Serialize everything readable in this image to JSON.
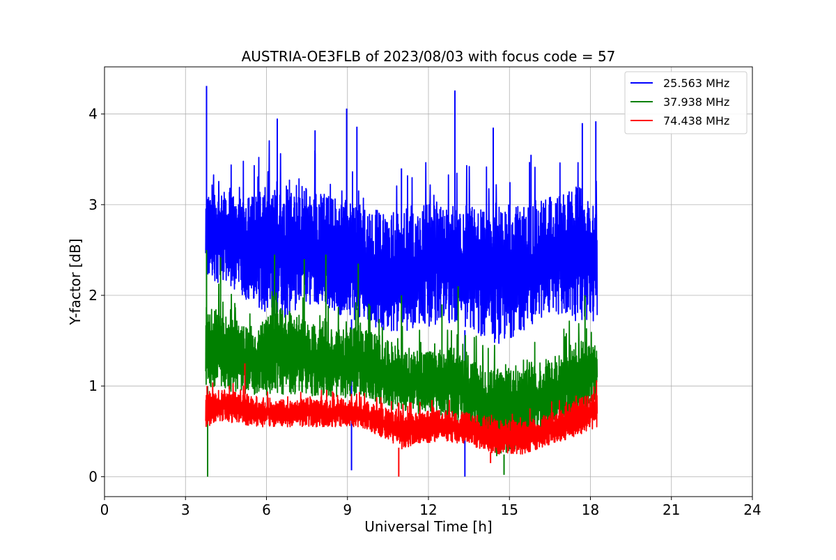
{
  "chart_data": {
    "type": "line",
    "title": "AUSTRIA-OE3FLB of 2023/08/03 with focus code = 57",
    "xlabel": "Universal Time [h]",
    "ylabel": "Y-factor [dB]",
    "xlim": [
      0,
      24
    ],
    "ylim": [
      -0.22,
      4.52
    ],
    "x_ticks": [
      0,
      3,
      6,
      9,
      12,
      15,
      18,
      21,
      24
    ],
    "x_tick_labels": [
      "0",
      "3",
      "6",
      "9",
      "12",
      "15",
      "18",
      "21",
      "24"
    ],
    "y_ticks": [
      0,
      1,
      2,
      3,
      4
    ],
    "y_tick_labels": [
      "0",
      "1",
      "2",
      "3",
      "4"
    ],
    "grid": true,
    "legend_position": "top-right",
    "series": [
      {
        "name": "25.563 MHz",
        "color": "#0000ff",
        "x_range": [
          3.75,
          18.25
        ],
        "envelope_x": [
          3.75,
          4.5,
          5.5,
          6.5,
          7.5,
          8.5,
          9.5,
          10.5,
          11.5,
          12.5,
          13.5,
          14.5,
          15.5,
          16.5,
          17.5,
          18.25
        ],
        "low": [
          2.2,
          2.1,
          1.9,
          1.7,
          1.9,
          1.8,
          1.7,
          1.6,
          1.6,
          1.7,
          1.6,
          1.45,
          1.6,
          1.8,
          1.7,
          1.7
        ],
        "high": [
          3.1,
          3.2,
          3.1,
          3.3,
          3.2,
          3.1,
          3.0,
          2.9,
          3.0,
          3.0,
          3.0,
          2.9,
          3.0,
          3.1,
          3.2,
          3.1
        ],
        "spikes": [
          [
            3.78,
            4.31
          ],
          [
            6.4,
            3.95
          ],
          [
            7.8,
            3.82
          ],
          [
            8.97,
            4.06
          ],
          [
            9.35,
            3.86
          ],
          [
            11.0,
            3.4
          ],
          [
            12.98,
            4.26
          ],
          [
            14.4,
            3.85
          ],
          [
            15.8,
            3.55
          ],
          [
            17.7,
            3.9
          ],
          [
            18.2,
            3.92
          ]
        ],
        "dips": [
          [
            9.15,
            0.07
          ],
          [
            13.35,
            0.0
          ]
        ]
      },
      {
        "name": "37.938 MHz",
        "color": "#008000",
        "x_range": [
          3.75,
          18.25
        ],
        "envelope_x": [
          3.75,
          4.5,
          5.5,
          6.5,
          7.5,
          8.5,
          9.5,
          10.5,
          11.5,
          12.5,
          13.5,
          14.5,
          15.5,
          16.5,
          17.5,
          18.25
        ],
        "low": [
          1.0,
          0.95,
          0.9,
          0.9,
          0.9,
          0.85,
          0.9,
          0.75,
          0.7,
          0.65,
          0.55,
          0.2,
          0.35,
          0.5,
          0.7,
          0.8
        ],
        "high": [
          1.9,
          1.8,
          1.6,
          1.9,
          1.7,
          1.6,
          1.7,
          1.5,
          1.4,
          1.4,
          1.3,
          1.2,
          1.2,
          1.3,
          1.5,
          1.5
        ],
        "spikes": [
          [
            3.78,
            2.5
          ],
          [
            4.3,
            2.42
          ],
          [
            6.3,
            2.45
          ],
          [
            7.4,
            2.4
          ],
          [
            8.2,
            2.45
          ],
          [
            9.4,
            2.35
          ],
          [
            11.0,
            2.0
          ],
          [
            12.5,
            1.9
          ],
          [
            13.1,
            2.1
          ],
          [
            17.8,
            2.0
          ]
        ],
        "dips": [
          [
            3.82,
            0.0
          ],
          [
            14.8,
            0.02
          ]
        ]
      },
      {
        "name": "74.438 MHz",
        "color": "#ff0000",
        "x_range": [
          3.75,
          18.25
        ],
        "envelope_x": [
          3.75,
          4.5,
          5.5,
          6.5,
          7.5,
          8.5,
          9.5,
          10.5,
          11.0,
          11.5,
          12.5,
          13.5,
          14.5,
          15.5,
          16.5,
          17.5,
          18.25
        ],
        "low": [
          0.55,
          0.6,
          0.55,
          0.55,
          0.55,
          0.55,
          0.55,
          0.4,
          0.3,
          0.35,
          0.4,
          0.35,
          0.25,
          0.25,
          0.35,
          0.45,
          0.55
        ],
        "high": [
          0.95,
          0.95,
          0.9,
          0.85,
          0.85,
          0.85,
          0.85,
          0.75,
          0.7,
          0.7,
          0.75,
          0.7,
          0.65,
          0.6,
          0.7,
          0.85,
          0.95
        ],
        "spikes": [
          [
            5.2,
            1.25
          ],
          [
            3.8,
            1.0
          ]
        ],
        "dips": [
          [
            10.9,
            0.0
          ],
          [
            14.3,
            0.15
          ]
        ]
      }
    ]
  }
}
